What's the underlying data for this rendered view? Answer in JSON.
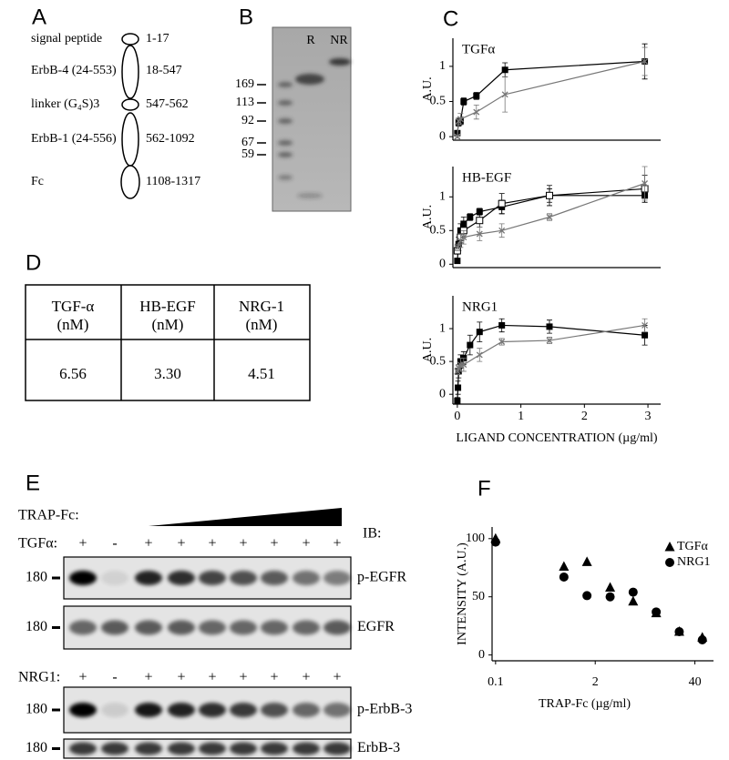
{
  "letters": [
    "A",
    "B",
    "C",
    "D",
    "E",
    "F"
  ],
  "panel_a": {
    "rows": [
      {
        "label": "signal peptide",
        "range": "1-17"
      },
      {
        "label": "ErbB-4 (24-553)",
        "range": "18-547"
      },
      {
        "label": "linker (G₄S)3",
        "range": "547-562"
      },
      {
        "label": "ErbB-1 (24-556)",
        "range": "562-1092"
      },
      {
        "label": "Fc",
        "range": "1108-1317"
      }
    ]
  },
  "panel_b": {
    "lanes": [
      "R",
      "NR"
    ],
    "markers": [
      "169",
      "113",
      "92",
      "67",
      "59"
    ]
  },
  "chart_data": [
    {
      "type": "line",
      "title": "TGFα",
      "y_label": "A.U.",
      "xlim": [
        -0.07,
        3.2
      ],
      "ylim": [
        -0.05,
        1.4
      ],
      "yticks": [
        0,
        0.5,
        1
      ],
      "series": [
        {
          "marker": "square",
          "color": "#000000",
          "x": [
            0,
            0.02,
            0.05,
            0.1,
            0.3,
            0.75,
            2.95
          ],
          "values": [
            0.05,
            0.2,
            0.22,
            0.5,
            0.58,
            0.95,
            1.07
          ],
          "errors": [
            0.03,
            0.05,
            0.05,
            0.05,
            0.05,
            0.1,
            0.25
          ]
        },
        {
          "marker": "cross",
          "color": "#777777",
          "x": [
            0,
            0.02,
            0.05,
            0.3,
            0.75,
            2.95
          ],
          "values": [
            0,
            0.22,
            0.25,
            0.35,
            0.6,
            1.07
          ],
          "errors": [
            0.02,
            0.05,
            0.08,
            0.1,
            0.25,
            0.2
          ]
        }
      ]
    },
    {
      "type": "line",
      "title": "HB-EGF",
      "y_label": "A.U.",
      "xlim": [
        -0.07,
        3.2
      ],
      "ylim": [
        -0.05,
        1.45
      ],
      "yticks": [
        0,
        0.5,
        1
      ],
      "series": [
        {
          "marker": "square",
          "color": "#000000",
          "x": [
            0,
            0.02,
            0.05,
            0.1,
            0.2,
            0.35,
            0.7,
            1.45,
            2.95
          ],
          "values": [
            0.05,
            0.3,
            0.5,
            0.6,
            0.7,
            0.78,
            0.85,
            1.02,
            1.02
          ],
          "errors": [
            0.03,
            0.1,
            0.1,
            0.1,
            0.05,
            0.05,
            0.1,
            0.1,
            0.1
          ]
        },
        {
          "marker": "open-square",
          "color": "#000000",
          "x": [
            0,
            0.05,
            0.1,
            0.35,
            0.7,
            1.45,
            2.95
          ],
          "values": [
            0.2,
            0.4,
            0.5,
            0.65,
            0.9,
            1.02,
            1.12
          ],
          "errors": [
            0.05,
            0.1,
            0.1,
            0.1,
            0.15,
            0.15,
            0.2
          ]
        },
        {
          "marker": "cross",
          "color": "#777777",
          "x": [
            0,
            0.05,
            0.1,
            0.35,
            0.7,
            1.45,
            2.95
          ],
          "values": [
            0.25,
            0.35,
            0.4,
            0.45,
            0.5,
            0.7,
            1.2
          ],
          "errors": [
            0.05,
            0.1,
            0.1,
            0.1,
            0.1,
            0.05,
            0.25
          ]
        }
      ]
    },
    {
      "type": "line",
      "title": "NRG1",
      "y_label": "A.U.",
      "x_label": "LIGAND CONCENTRATION (µg/ml)",
      "xlim": [
        -0.07,
        3.2
      ],
      "ylim": [
        -0.15,
        1.5
      ],
      "xticks": [
        0,
        1,
        2,
        3
      ],
      "yticks": [
        0,
        0.5,
        1
      ],
      "series": [
        {
          "marker": "square",
          "color": "#000000",
          "x": [
            0,
            0.01,
            0.02,
            0.05,
            0.1,
            0.2,
            0.35,
            0.7,
            1.45,
            2.95
          ],
          "values": [
            -0.1,
            0.1,
            0.35,
            0.5,
            0.55,
            0.75,
            0.95,
            1.05,
            1.03,
            0.9
          ],
          "errors": [
            0.05,
            0.1,
            0.1,
            0.1,
            0.1,
            0.15,
            0.15,
            0.1,
            0.1,
            0.15
          ]
        },
        {
          "marker": "cross",
          "color": "#777777",
          "x": [
            0,
            0.02,
            0.05,
            0.1,
            0.35,
            0.7,
            1.45,
            2.95
          ],
          "values": [
            0.35,
            0.4,
            0.45,
            0.45,
            0.6,
            0.8,
            0.82,
            1.05
          ],
          "errors": [
            0.05,
            0.05,
            0.1,
            0.1,
            0.1,
            0.05,
            0.05,
            0.1
          ]
        }
      ]
    },
    {
      "type": "scatter",
      "x_label": "TRAP-Fc (µg/ml)",
      "y_label": "INTENSITY (A.U.)",
      "xscale": "log",
      "xlim": [
        0.09,
        70
      ],
      "ylim": [
        -5,
        110
      ],
      "xticks": [
        0.1,
        2,
        40
      ],
      "yticks": [
        0,
        50,
        100
      ],
      "legend": "upper right",
      "series": [
        {
          "name": "TGFα",
          "marker": "triangle",
          "color": "#000000",
          "x": [
            0.1,
            0.78,
            1.56,
            3.13,
            6.25,
            12.5,
            25,
            50
          ],
          "values": [
            100,
            76,
            80,
            58,
            46,
            36,
            20,
            15
          ]
        },
        {
          "name": "NRG1",
          "marker": "circle",
          "color": "#000000",
          "x": [
            0.1,
            0.78,
            1.56,
            3.13,
            6.25,
            12.5,
            25,
            50
          ],
          "values": [
            97,
            67,
            51,
            50,
            54,
            37,
            20,
            13
          ]
        }
      ]
    }
  ],
  "panel_d": {
    "table": {
      "header": [
        [
          "TGF-α",
          "(nM)"
        ],
        [
          "HB-EGF",
          "(nM)"
        ],
        [
          "NRG-1",
          "(nM)"
        ]
      ],
      "rows": [
        [
          "6.56",
          "3.30",
          "4.51"
        ]
      ]
    }
  },
  "panel_e": {
    "trap_label": "TRAP-Fc:",
    "ib_label": "IB:",
    "tgfa_label": "TGFα:",
    "nrg1_label": "NRG1:",
    "tgfa_signs": [
      "+",
      "-",
      "+",
      "+",
      "+",
      "+",
      "+",
      "+",
      "+"
    ],
    "nrg1_signs": [
      "+",
      "-",
      "+",
      "+",
      "+",
      "+",
      "+",
      "+",
      "+"
    ],
    "blots": [
      {
        "marker": "180",
        "label": "p-EGFR"
      },
      {
        "marker": "180",
        "label": "EGFR"
      },
      {
        "marker": "180",
        "label": "p-ErbB-3"
      },
      {
        "marker": "180",
        "label": "ErbB-3"
      }
    ]
  }
}
